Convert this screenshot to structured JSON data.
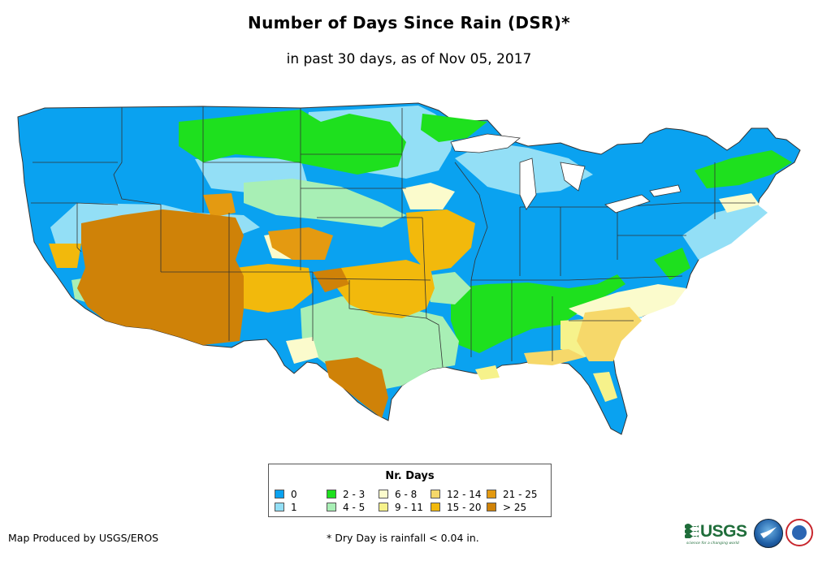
{
  "header": {
    "title": "Number of Days Since Rain (DSR)*",
    "subtitle": "in past 30 days, as of Nov 05, 2017"
  },
  "legend": {
    "title": "Nr. Days",
    "items": [
      {
        "label": "0",
        "color": "#0aa2f0"
      },
      {
        "label": "1",
        "color": "#93dff6"
      },
      {
        "label": "2 - 3",
        "color": "#1ee01e"
      },
      {
        "label": "4 - 5",
        "color": "#a8efb5"
      },
      {
        "label": "6 - 8",
        "color": "#fbfbcc"
      },
      {
        "label": "9 - 11",
        "color": "#f6f28b"
      },
      {
        "label": "12 - 14",
        "color": "#f6d86a"
      },
      {
        "label": "15 - 20",
        "color": "#f2b90c"
      },
      {
        "label": "21 - 25",
        "color": "#e49a11"
      },
      {
        "label": "> 25",
        "color": "#cf8208"
      }
    ]
  },
  "footer": {
    "credit": "Map Produced by USGS/EROS",
    "note": "* Dry Day is rainfall < 0.04 in."
  },
  "logos": {
    "usgs": "USGS",
    "usgs_tagline": "science for a changing world"
  }
}
